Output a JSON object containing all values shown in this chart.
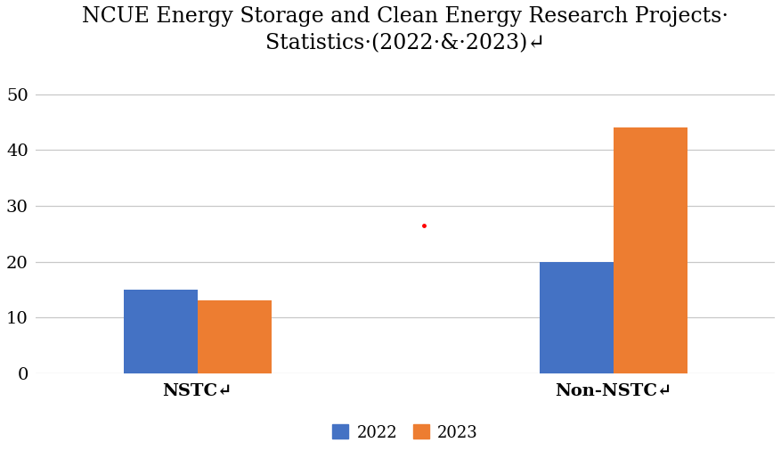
{
  "title_line1": "NCUE Energy Storage and Clean Energy Research Projects·",
  "title_line2": "Statistics·(2022·&·2023)↵",
  "categories": [
    "NSTC↵",
    "Non­NSTC↵"
  ],
  "values_2022": [
    15,
    20
  ],
  "values_2023": [
    13,
    44
  ],
  "color_2022": "#4472C4",
  "color_2023": "#ED7D31",
  "ylim": [
    0,
    55
  ],
  "yticks": [
    0,
    10,
    20,
    30,
    40,
    50
  ],
  "legend_labels": [
    "2022",
    "2023"
  ],
  "bar_width": 0.32,
  "group_positions": [
    1.0,
    2.8
  ],
  "red_dot_x": 1.98,
  "red_dot_y": 26.5,
  "background_color": "#FFFFFF",
  "grid_color": "#C8C8C8",
  "title_fontsize": 17,
  "tick_fontsize": 14,
  "legend_fontsize": 13,
  "xlim": [
    0.3,
    3.5
  ]
}
